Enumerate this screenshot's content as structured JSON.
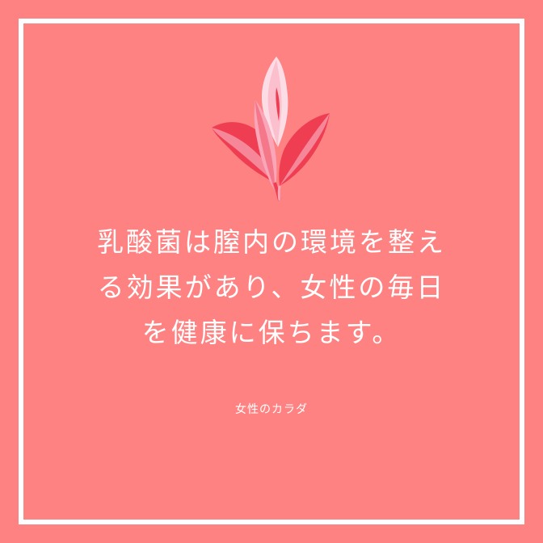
{
  "theme": {
    "background": "#ff8282",
    "frame": "#ffffff",
    "text": "#ffffff",
    "leaf_red": "#ef3d52",
    "leaf_pink": "#f9a6b8",
    "spathe": "#fcdde6"
  },
  "illustration": {
    "icon": "anthurium-plant-icon"
  },
  "headline": {
    "lines": [
      "乳酸菌は膣内の環境を整え",
      "る効果があり、女性の毎日",
      "を健康に保ちます。"
    ]
  },
  "brand": {
    "name": "女性のカラダ"
  }
}
